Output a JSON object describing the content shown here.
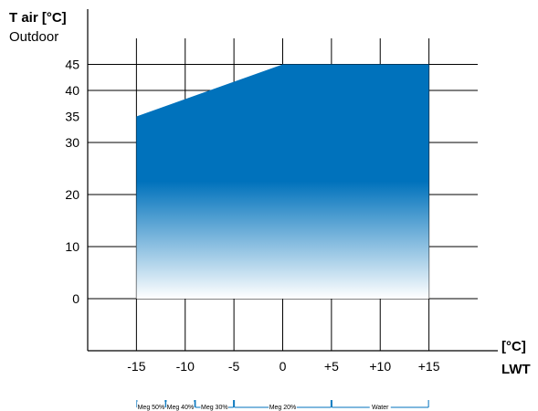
{
  "chart_data": {
    "type": "area",
    "title": "",
    "y_axis": {
      "label_line1": "T air [°C]",
      "label_line2": "Outdoor",
      "range": [
        -10,
        50
      ],
      "ticks": [
        {
          "value": 0,
          "label": "0"
        },
        {
          "value": 10,
          "label": "10"
        },
        {
          "value": 20,
          "label": "20"
        },
        {
          "value": 30,
          "label": "30"
        },
        {
          "value": 35,
          "label": "35"
        },
        {
          "value": 40,
          "label": "40"
        },
        {
          "value": 45,
          "label": "45"
        }
      ]
    },
    "x_axis": {
      "label_line1": "[°C]",
      "label_line2": "LWT",
      "range": [
        -20,
        20
      ],
      "ticks": [
        {
          "value": -15,
          "label": "-15"
        },
        {
          "value": -10,
          "label": "-10"
        },
        {
          "value": -5,
          "label": "-5"
        },
        {
          "value": 0,
          "label": "0"
        },
        {
          "value": 5,
          "label": "+5"
        },
        {
          "value": 10,
          "label": "+10"
        },
        {
          "value": 15,
          "label": "+15"
        }
      ]
    },
    "grid": true,
    "grid_x_values": [
      -15,
      -10,
      -5,
      0,
      5,
      10,
      15
    ],
    "grid_y_values": [
      0,
      10,
      20,
      30,
      40,
      45
    ],
    "envelope": {
      "points": [
        {
          "x": -15,
          "y": 0
        },
        {
          "x": -15,
          "y": 35
        },
        {
          "x": 0,
          "y": 45
        },
        {
          "x": 15,
          "y": 45
        },
        {
          "x": 15,
          "y": 0
        }
      ],
      "color_top": "#0072BC",
      "color_bottom": "#FFFFFF"
    },
    "fluid_ranges": [
      {
        "label": "Meg 50%",
        "from": -15,
        "to": -12
      },
      {
        "label": "Meg 40%",
        "from": -12,
        "to": -9
      },
      {
        "label": "Meg 30%",
        "from": -9,
        "to": -5
      },
      {
        "label": "Meg 20%",
        "from": -5,
        "to": 5
      },
      {
        "label": "Water",
        "from": 5,
        "to": 15
      }
    ]
  }
}
